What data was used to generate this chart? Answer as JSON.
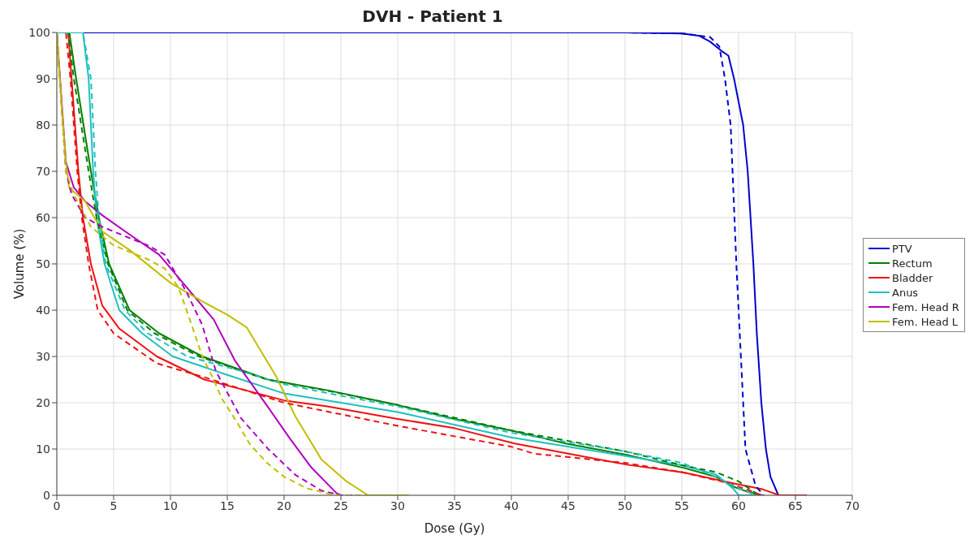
{
  "chart_data": {
    "type": "line",
    "title": "DVH - Patient 1",
    "xlabel": "Dose (Gy)",
    "ylabel": "Volume (%)",
    "xlim": [
      0,
      70
    ],
    "xticks": [
      0,
      5,
      10,
      15,
      20,
      25,
      30,
      35,
      40,
      45,
      50,
      55,
      60,
      65,
      70
    ],
    "ylim": [
      0,
      100
    ],
    "yticks": [
      0,
      10,
      20,
      30,
      40,
      50,
      60,
      70,
      80,
      90,
      100
    ],
    "grid": true,
    "legend": "right",
    "marker": "none",
    "series": [
      {
        "name": "PTV",
        "color": "#0000cd",
        "line_style": "solid",
        "x": [
          0,
          50,
          55,
          56.5,
          57.5,
          58.5,
          59.1,
          59.6,
          60.4,
          60.8,
          61.3,
          61.6,
          62,
          62.4,
          62.8,
          63.5,
          64
        ],
        "values": [
          100,
          100,
          99.8,
          99.3,
          98,
          96,
          95,
          90,
          80,
          70,
          50,
          35,
          20,
          10,
          4,
          0,
          0
        ]
      },
      {
        "name": "Rectum",
        "color": "#008000",
        "line_style": "solid",
        "x": [
          0,
          1.1,
          1.7,
          3,
          3.7,
          4.6,
          6.4,
          9,
          12.8,
          18.6,
          23.8,
          30,
          35,
          40,
          44.8,
          50,
          55.2,
          58,
          59.7,
          61,
          62.1
        ],
        "values": [
          100,
          100,
          90,
          70,
          60,
          50,
          40,
          35,
          30,
          25,
          22.7,
          19.5,
          16.5,
          14,
          11.2,
          8.8,
          5.9,
          4,
          1.7,
          0.6,
          0
        ]
      },
      {
        "name": "Bladder",
        "color": "#ee1111",
        "line_style": "solid",
        "x": [
          0,
          1,
          1.3,
          1.9,
          2.3,
          3,
          4,
          5.5,
          8.8,
          13,
          20,
          23.8,
          30,
          35,
          40.3,
          50.2,
          55.2,
          59.7,
          62.1,
          63.6,
          66
        ],
        "values": [
          100,
          100,
          90,
          70,
          60,
          50,
          41,
          36,
          30,
          25,
          20.5,
          19.2,
          16.5,
          14.5,
          11.2,
          6.6,
          4.9,
          2.5,
          1.3,
          0,
          0
        ]
      },
      {
        "name": "Anus",
        "color": "#20c0c0",
        "line_style": "solid",
        "x": [
          0,
          2.3,
          2.8,
          3.2,
          3.5,
          4.2,
          5.5,
          7.5,
          10.2,
          15,
          20,
          30,
          40,
          50,
          55,
          58,
          59.5,
          60,
          62
        ],
        "values": [
          100,
          100,
          90,
          70,
          60,
          50,
          40,
          35,
          30,
          26,
          22,
          18,
          12.5,
          8.5,
          6.5,
          4.5,
          1.5,
          0,
          0
        ]
      },
      {
        "name": "Fem. Head R",
        "color": "#b000c0",
        "line_style": "solid",
        "x": [
          0,
          0.8,
          1.5,
          2.5,
          4,
          6.6,
          9,
          11.1,
          13.8,
          15.7,
          18.6,
          20.5,
          22.4,
          24.6,
          25
        ],
        "values": [
          100,
          72,
          66.5,
          63.5,
          60.5,
          56,
          52,
          45.9,
          38,
          29,
          19,
          12.3,
          6,
          0.5,
          0
        ]
      },
      {
        "name": "Fem. Head L",
        "color": "#c0c000",
        "line_style": "solid",
        "x": [
          0,
          0.4,
          0.8,
          1.1,
          2.5,
          4,
          6.4,
          10,
          12.8,
          15,
          16.7,
          18,
          19.3,
          21,
          23.3,
          25.5,
          27.4,
          28,
          31
        ],
        "values": [
          100,
          85,
          72,
          66.4,
          63.5,
          57,
          53,
          45.9,
          41.9,
          39,
          36.3,
          31,
          25.7,
          17,
          7.7,
          3,
          0,
          0,
          0
        ]
      },
      {
        "color": "#0000cd",
        "line_style": "dashed",
        "x": [
          0,
          50,
          55,
          57.5,
          58.3,
          58.8,
          59.3,
          59.8,
          60.4,
          60.6,
          61.5,
          62.2
        ],
        "values": [
          100,
          100,
          99.8,
          99,
          97,
          90,
          80,
          50,
          20,
          10,
          2,
          0
        ]
      },
      {
        "color": "#008000",
        "line_style": "dashed",
        "x": [
          0,
          1,
          1.5,
          2.8,
          3.5,
          4.5,
          6.2,
          8.6,
          12.5,
          18.5,
          24,
          30,
          40,
          50,
          55,
          58,
          60,
          61.5,
          62
        ],
        "values": [
          100,
          100,
          90,
          70,
          60,
          50,
          40,
          35,
          30,
          25,
          22.5,
          19.5,
          14,
          9.5,
          6.5,
          5,
          3,
          0.5,
          0
        ]
      },
      {
        "color": "#ee1111",
        "line_style": "dashed",
        "x": [
          0,
          0.8,
          1.2,
          1.8,
          2.2,
          2.8,
          3.6,
          5,
          8.8,
          13,
          20,
          30,
          40,
          42,
          50,
          55,
          59,
          61,
          62
        ],
        "values": [
          100,
          100,
          90,
          70,
          60,
          50,
          40,
          35,
          28.5,
          25.5,
          20,
          15,
          10.5,
          9,
          7,
          5,
          2.7,
          1,
          0
        ]
      },
      {
        "color": "#20c0c0",
        "line_style": "dashed",
        "x": [
          0,
          2.3,
          3,
          3.4,
          3.7,
          4.3,
          6,
          8,
          11.5,
          16,
          20,
          25,
          30,
          40,
          50,
          55,
          58,
          60,
          61.5
        ],
        "values": [
          100,
          100,
          90,
          70,
          60,
          50,
          40,
          35,
          30,
          27,
          24,
          21.5,
          19.2,
          13.5,
          9.5,
          7,
          4,
          1.5,
          0
        ]
      },
      {
        "color": "#b000c0",
        "line_style": "dashed",
        "x": [
          0,
          0.8,
          1.3,
          2.5,
          4,
          6,
          8,
          9.5,
          11.4,
          12.8,
          14,
          16.2,
          18.6,
          21,
          23.3,
          25,
          26
        ],
        "values": [
          100,
          70,
          65,
          60,
          58,
          56,
          54,
          52,
          44,
          36.8,
          26.8,
          16.7,
          10,
          4.4,
          1,
          0,
          0
        ]
      },
      {
        "color": "#c0c000",
        "line_style": "dashed",
        "x": [
          0,
          0.4,
          0.8,
          1.5,
          3,
          5,
          8,
          9.5,
          10.7,
          11.7,
          12.8,
          13.8,
          14.5,
          15.8,
          17,
          18.5,
          20,
          22,
          24,
          25,
          31
        ],
        "values": [
          100,
          85,
          70,
          65,
          58,
          54,
          51,
          49,
          45,
          38,
          30,
          25,
          21,
          16,
          11,
          7,
          4,
          1.5,
          0.3,
          0,
          0
        ]
      }
    ]
  }
}
